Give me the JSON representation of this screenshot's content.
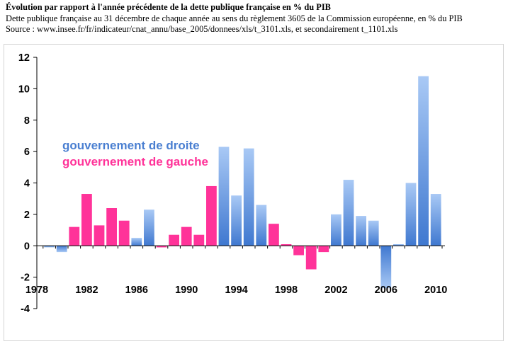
{
  "header": {
    "title": "Évolution par rapport à l'année précédente de la dette publique française en % du PIB",
    "subtitle": "Dette publique française au 31 décembre de chaque année au sens du règlement 3605 de la Commission européenne, en % du PIB",
    "source": "Source : www.insee.fr/fr/indicateur/cnat_annu/base_2005/donnees/xls/t_3101.xls, et secondairement t_1101.xls"
  },
  "colors": {
    "droite": "#4a7fd1",
    "gauche": "#ff3399"
  },
  "chart_data": {
    "type": "bar",
    "title": "Évolution par rapport à l'année précédente de la dette publique française en % du PIB",
    "xlabel": "",
    "ylabel": "",
    "ylim": [
      -4,
      12
    ],
    "yticks": [
      -4,
      -2,
      0,
      2,
      4,
      6,
      8,
      10,
      12
    ],
    "xticks": [
      1978,
      1982,
      1986,
      1990,
      1994,
      1998,
      2002,
      2006,
      2010
    ],
    "grid": false,
    "legend": [
      {
        "key": "droite",
        "label": "gouvernement de droite"
      },
      {
        "key": "gauche",
        "label": "gouvernement de gauche"
      }
    ],
    "series": [
      {
        "year": 1979,
        "value": -0.1,
        "gov": "droite"
      },
      {
        "year": 1980,
        "value": -0.4,
        "gov": "droite"
      },
      {
        "year": 1981,
        "value": 1.2,
        "gov": "gauche"
      },
      {
        "year": 1982,
        "value": 3.3,
        "gov": "gauche"
      },
      {
        "year": 1983,
        "value": 1.3,
        "gov": "gauche"
      },
      {
        "year": 1984,
        "value": 2.4,
        "gov": "gauche"
      },
      {
        "year": 1985,
        "value": 1.6,
        "gov": "gauche"
      },
      {
        "year": 1986,
        "value": 0.5,
        "gov": "droite"
      },
      {
        "year": 1987,
        "value": 2.3,
        "gov": "droite"
      },
      {
        "year": 1988,
        "value": -0.1,
        "gov": "gauche"
      },
      {
        "year": 1989,
        "value": 0.7,
        "gov": "gauche"
      },
      {
        "year": 1990,
        "value": 1.2,
        "gov": "gauche"
      },
      {
        "year": 1991,
        "value": 0.7,
        "gov": "gauche"
      },
      {
        "year": 1992,
        "value": 3.8,
        "gov": "gauche"
      },
      {
        "year": 1993,
        "value": 6.3,
        "gov": "droite"
      },
      {
        "year": 1994,
        "value": 3.2,
        "gov": "droite"
      },
      {
        "year": 1995,
        "value": 6.2,
        "gov": "droite"
      },
      {
        "year": 1996,
        "value": 2.6,
        "gov": "droite"
      },
      {
        "year": 1997,
        "value": 1.4,
        "gov": "gauche"
      },
      {
        "year": 1998,
        "value": 0.1,
        "gov": "gauche"
      },
      {
        "year": 1999,
        "value": -0.6,
        "gov": "gauche"
      },
      {
        "year": 2000,
        "value": -1.5,
        "gov": "gauche"
      },
      {
        "year": 2001,
        "value": -0.4,
        "gov": "gauche"
      },
      {
        "year": 2002,
        "value": 2.0,
        "gov": "droite"
      },
      {
        "year": 2003,
        "value": 4.2,
        "gov": "droite"
      },
      {
        "year": 2004,
        "value": 1.9,
        "gov": "droite"
      },
      {
        "year": 2005,
        "value": 1.6,
        "gov": "droite"
      },
      {
        "year": 2006,
        "value": -2.7,
        "gov": "droite"
      },
      {
        "year": 2007,
        "value": 0.1,
        "gov": "droite"
      },
      {
        "year": 2008,
        "value": 4.0,
        "gov": "droite"
      },
      {
        "year": 2009,
        "value": 10.8,
        "gov": "droite"
      },
      {
        "year": 2010,
        "value": 3.3,
        "gov": "droite"
      }
    ]
  }
}
